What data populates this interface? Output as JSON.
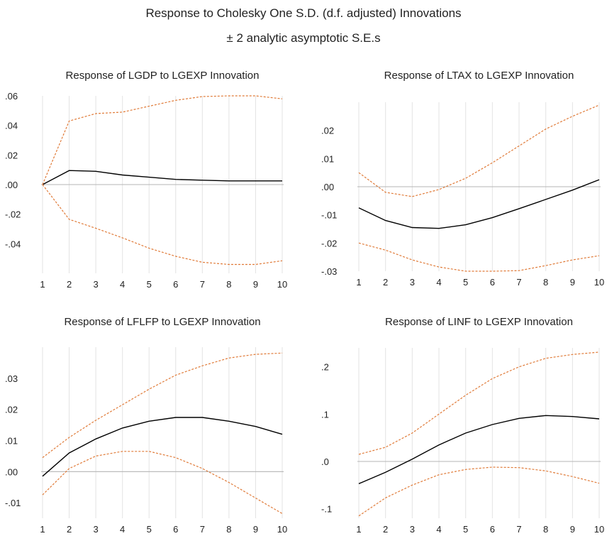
{
  "figure": {
    "title": "Response to Cholesky One S.D. (d.f. adjusted) Innovations",
    "subtitle": "± 2 analytic asymptotic S.E.s"
  },
  "colors": {
    "response": "#000000",
    "bands": "#e07b39",
    "grid": "#e3e3e3",
    "zero": "#b5b5b5"
  },
  "chart_data": [
    {
      "type": "line",
      "title": "Response of LGDP to LGEXP Innovation",
      "x": [
        1,
        2,
        3,
        4,
        5,
        6,
        7,
        8,
        9,
        10
      ],
      "xticks": [
        "1",
        "2",
        "3",
        "4",
        "5",
        "6",
        "7",
        "8",
        "9",
        "10"
      ],
      "ylim": [
        -0.06,
        0.06
      ],
      "yticks": [
        {
          "value": -0.04,
          "label": "-.04"
        },
        {
          "value": -0.02,
          "label": "-.02"
        },
        {
          "value": 0.0,
          "label": ".00"
        },
        {
          "value": 0.02,
          "label": ".02"
        },
        {
          "value": 0.04,
          "label": ".04"
        },
        {
          "value": 0.06,
          "label": ".06"
        }
      ],
      "grid": true,
      "series": [
        {
          "role": "response",
          "values": [
            0.0,
            0.0095,
            0.009,
            0.0065,
            0.005,
            0.0035,
            0.003,
            0.0025,
            0.0025,
            0.0025
          ]
        },
        {
          "role": "upper",
          "values": [
            0.0,
            0.043,
            0.048,
            0.049,
            0.053,
            0.057,
            0.0595,
            0.06,
            0.06,
            0.058
          ]
        },
        {
          "role": "lower",
          "values": [
            0.0,
            -0.0235,
            -0.0295,
            -0.036,
            -0.043,
            -0.0485,
            -0.0525,
            -0.054,
            -0.054,
            -0.0515
          ]
        }
      ]
    },
    {
      "type": "line",
      "title": "Response of LTAX to LGEXP Innovation",
      "x": [
        1,
        2,
        3,
        4,
        5,
        6,
        7,
        8,
        9,
        10
      ],
      "xticks": [
        "1",
        "2",
        "3",
        "4",
        "5",
        "6",
        "7",
        "8",
        "9",
        "10"
      ],
      "ylim": [
        -0.03,
        0.03
      ],
      "yticks": [
        {
          "value": -0.03,
          "label": "-.03"
        },
        {
          "value": -0.02,
          "label": "-.02"
        },
        {
          "value": -0.01,
          "label": "-.01"
        },
        {
          "value": 0.0,
          "label": ".00"
        },
        {
          "value": 0.01,
          "label": ".01"
        },
        {
          "value": 0.02,
          "label": ".02"
        }
      ],
      "grid": true,
      "series": [
        {
          "role": "response",
          "values": [
            -0.0075,
            -0.012,
            -0.0145,
            -0.0148,
            -0.0135,
            -0.011,
            -0.0078,
            -0.0045,
            -0.0012,
            0.0025
          ]
        },
        {
          "role": "upper",
          "values": [
            0.005,
            -0.002,
            -0.0035,
            -0.001,
            0.003,
            0.0085,
            0.0145,
            0.0205,
            0.025,
            0.029
          ]
        },
        {
          "role": "lower",
          "values": [
            -0.02,
            -0.0225,
            -0.026,
            -0.0285,
            -0.03,
            -0.03,
            -0.0298,
            -0.028,
            -0.026,
            -0.0245
          ]
        }
      ]
    },
    {
      "type": "line",
      "title": "Response of LFLFP to LGEXP Innovation",
      "x": [
        1,
        2,
        3,
        4,
        5,
        6,
        7,
        8,
        9,
        10
      ],
      "xticks": [
        "1",
        "2",
        "3",
        "4",
        "5",
        "6",
        "7",
        "8",
        "9",
        "10"
      ],
      "ylim": [
        -0.015,
        0.04
      ],
      "yticks": [
        {
          "value": -0.01,
          "label": "-.01"
        },
        {
          "value": 0.0,
          "label": ".00"
        },
        {
          "value": 0.01,
          "label": ".01"
        },
        {
          "value": 0.02,
          "label": ".02"
        },
        {
          "value": 0.03,
          "label": ".03"
        }
      ],
      "grid": true,
      "series": [
        {
          "role": "response",
          "values": [
            -0.0015,
            0.006,
            0.0105,
            0.014,
            0.0162,
            0.0174,
            0.0174,
            0.0162,
            0.0145,
            0.012
          ]
        },
        {
          "role": "upper",
          "values": [
            0.0045,
            0.011,
            0.0165,
            0.0215,
            0.0265,
            0.031,
            0.034,
            0.0365,
            0.0377,
            0.0381
          ]
        },
        {
          "role": "lower",
          "values": [
            -0.0075,
            0.001,
            0.005,
            0.0065,
            0.0065,
            0.0045,
            0.001,
            -0.0035,
            -0.0085,
            -0.0135
          ]
        }
      ]
    },
    {
      "type": "line",
      "title": "Response of LINF to LGEXP Innovation",
      "x": [
        1,
        2,
        3,
        4,
        5,
        6,
        7,
        8,
        9,
        10
      ],
      "xticks": [
        "1",
        "2",
        "3",
        "4",
        "5",
        "6",
        "7",
        "8",
        "9",
        "10"
      ],
      "ylim": [
        -0.12,
        0.24
      ],
      "yticks": [
        {
          "value": -0.1,
          "label": "-.1"
        },
        {
          "value": 0.0,
          "label": ".0"
        },
        {
          "value": 0.1,
          "label": ".1"
        },
        {
          "value": 0.2,
          "label": ".2"
        }
      ],
      "grid": true,
      "series": [
        {
          "role": "response",
          "values": [
            -0.047,
            -0.023,
            0.005,
            0.035,
            0.06,
            0.078,
            0.091,
            0.097,
            0.095,
            0.09
          ]
        },
        {
          "role": "upper",
          "values": [
            0.015,
            0.03,
            0.06,
            0.1,
            0.14,
            0.175,
            0.2,
            0.218,
            0.226,
            0.231
          ]
        },
        {
          "role": "lower",
          "values": [
            -0.115,
            -0.077,
            -0.05,
            -0.028,
            -0.017,
            -0.012,
            -0.013,
            -0.02,
            -0.032,
            -0.046
          ]
        }
      ]
    }
  ]
}
